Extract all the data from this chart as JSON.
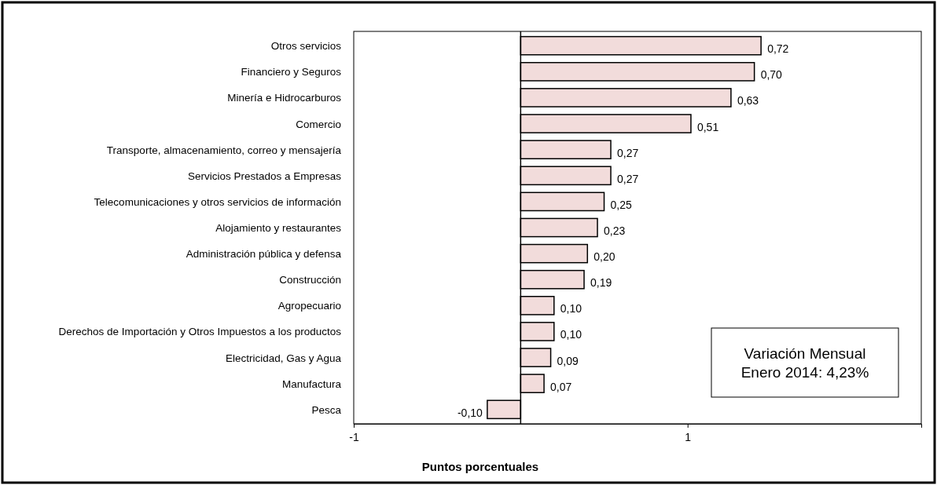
{
  "chart_data": {
    "type": "bar",
    "orientation": "horizontal",
    "xlabel": "Puntos porcentuales",
    "categories": [
      "Otros servicios",
      "Financiero y Seguros",
      "Minería e Hidrocarburos",
      "Comercio",
      "Transporte, almacenamiento, correo y mensajería",
      "Servicios Prestados a Empresas",
      "Telecomunicaciones y otros servicios de información",
      "Alojamiento y restaurantes",
      "Administración pública y defensa",
      "Construcción",
      "Agropecuario",
      "Derechos de Importación y Otros Impuestos a los productos",
      "Electricidad, Gas y Agua",
      "Manufactura",
      "Pesca"
    ],
    "values": [
      0.72,
      0.7,
      0.63,
      0.51,
      0.27,
      0.27,
      0.25,
      0.23,
      0.2,
      0.19,
      0.1,
      0.1,
      0.09,
      0.07,
      -0.1
    ],
    "value_labels": [
      "0,72",
      "0,70",
      "0,63",
      "0,51",
      "0,27",
      "0,27",
      "0,25",
      "0,23",
      "0,20",
      "0,19",
      "0,10",
      "0,10",
      "0,09",
      "0,07",
      "-0,10"
    ],
    "color": "#f2dcdb",
    "xlim": [
      -0.5,
      1.2
    ],
    "xticks": [
      {
        "value": -0.5,
        "label": "-1"
      },
      {
        "value": 0.5,
        "label": "1"
      }
    ],
    "annotations": [
      "Variación Mensual",
      "Enero 2014: 4,23%"
    ]
  }
}
